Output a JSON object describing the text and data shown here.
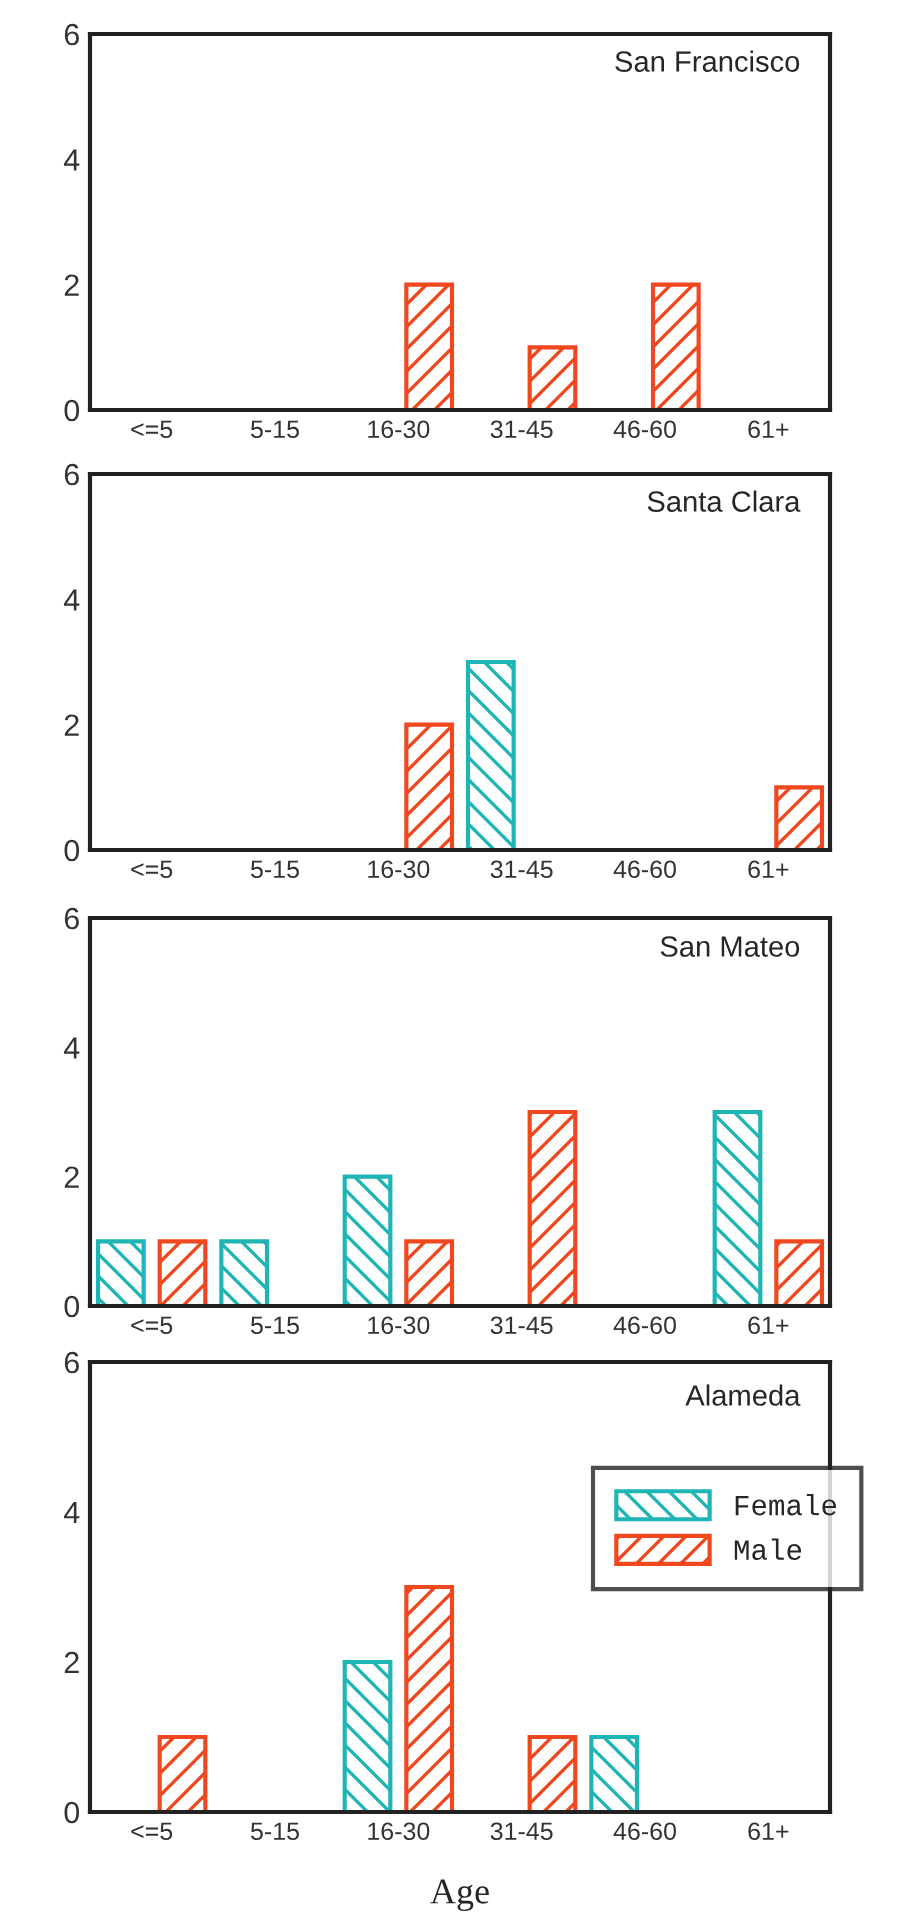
{
  "chart_data": [
    {
      "type": "bar",
      "title": "San Francisco",
      "categories": [
        "<=5",
        "5-15",
        "16-30",
        "31-45",
        "46-60",
        "61+"
      ],
      "ylim": [
        0,
        6
      ],
      "yticks": [
        0,
        2,
        4,
        6
      ],
      "series": [
        {
          "color": "#1fb5b5",
          "values": [
            0,
            0,
            0,
            0,
            0,
            0
          ]
        },
        {
          "color": "#f0481e",
          "values": [
            0,
            0,
            2,
            1,
            2,
            0
          ]
        }
      ]
    },
    {
      "type": "bar",
      "title": "Santa Clara",
      "categories": [
        "<=5",
        "5-15",
        "16-30",
        "31-45",
        "46-60",
        "61+"
      ],
      "ylim": [
        0,
        6
      ],
      "yticks": [
        0,
        2,
        4,
        6
      ],
      "series": [
        {
          "color": "#1fb5b5",
          "values": [
            0,
            0,
            0,
            3,
            0,
            0
          ]
        },
        {
          "color": "#f0481e",
          "values": [
            0,
            0,
            2,
            0,
            0,
            1
          ]
        }
      ]
    },
    {
      "type": "bar",
      "title": "San Mateo",
      "categories": [
        "<=5",
        "5-15",
        "16-30",
        "31-45",
        "46-60",
        "61+"
      ],
      "ylim": [
        0,
        6
      ],
      "yticks": [
        0,
        2,
        4,
        6
      ],
      "series": [
        {
          "color": "#1fb5b5",
          "values": [
            1,
            1,
            2,
            0,
            0,
            3
          ]
        },
        {
          "color": "#f0481e",
          "values": [
            1,
            0,
            1,
            3,
            0,
            1
          ]
        }
      ]
    },
    {
      "type": "bar",
      "title": "Alameda",
      "xlabel": "Age",
      "categories": [
        "<=5",
        "5-15",
        "16-30",
        "31-45",
        "46-60",
        "61+"
      ],
      "ylim": [
        0,
        6
      ],
      "yticks": [
        0,
        2,
        4,
        6
      ],
      "legend": "right",
      "series": [
        {
          "name": "Female",
          "color": "#1fb5b5",
          "values": [
            0,
            0,
            2,
            0,
            1,
            0
          ]
        },
        {
          "name": "Male",
          "color": "#f0481e",
          "values": [
            1,
            0,
            3,
            1,
            0,
            0
          ]
        }
      ]
    }
  ]
}
